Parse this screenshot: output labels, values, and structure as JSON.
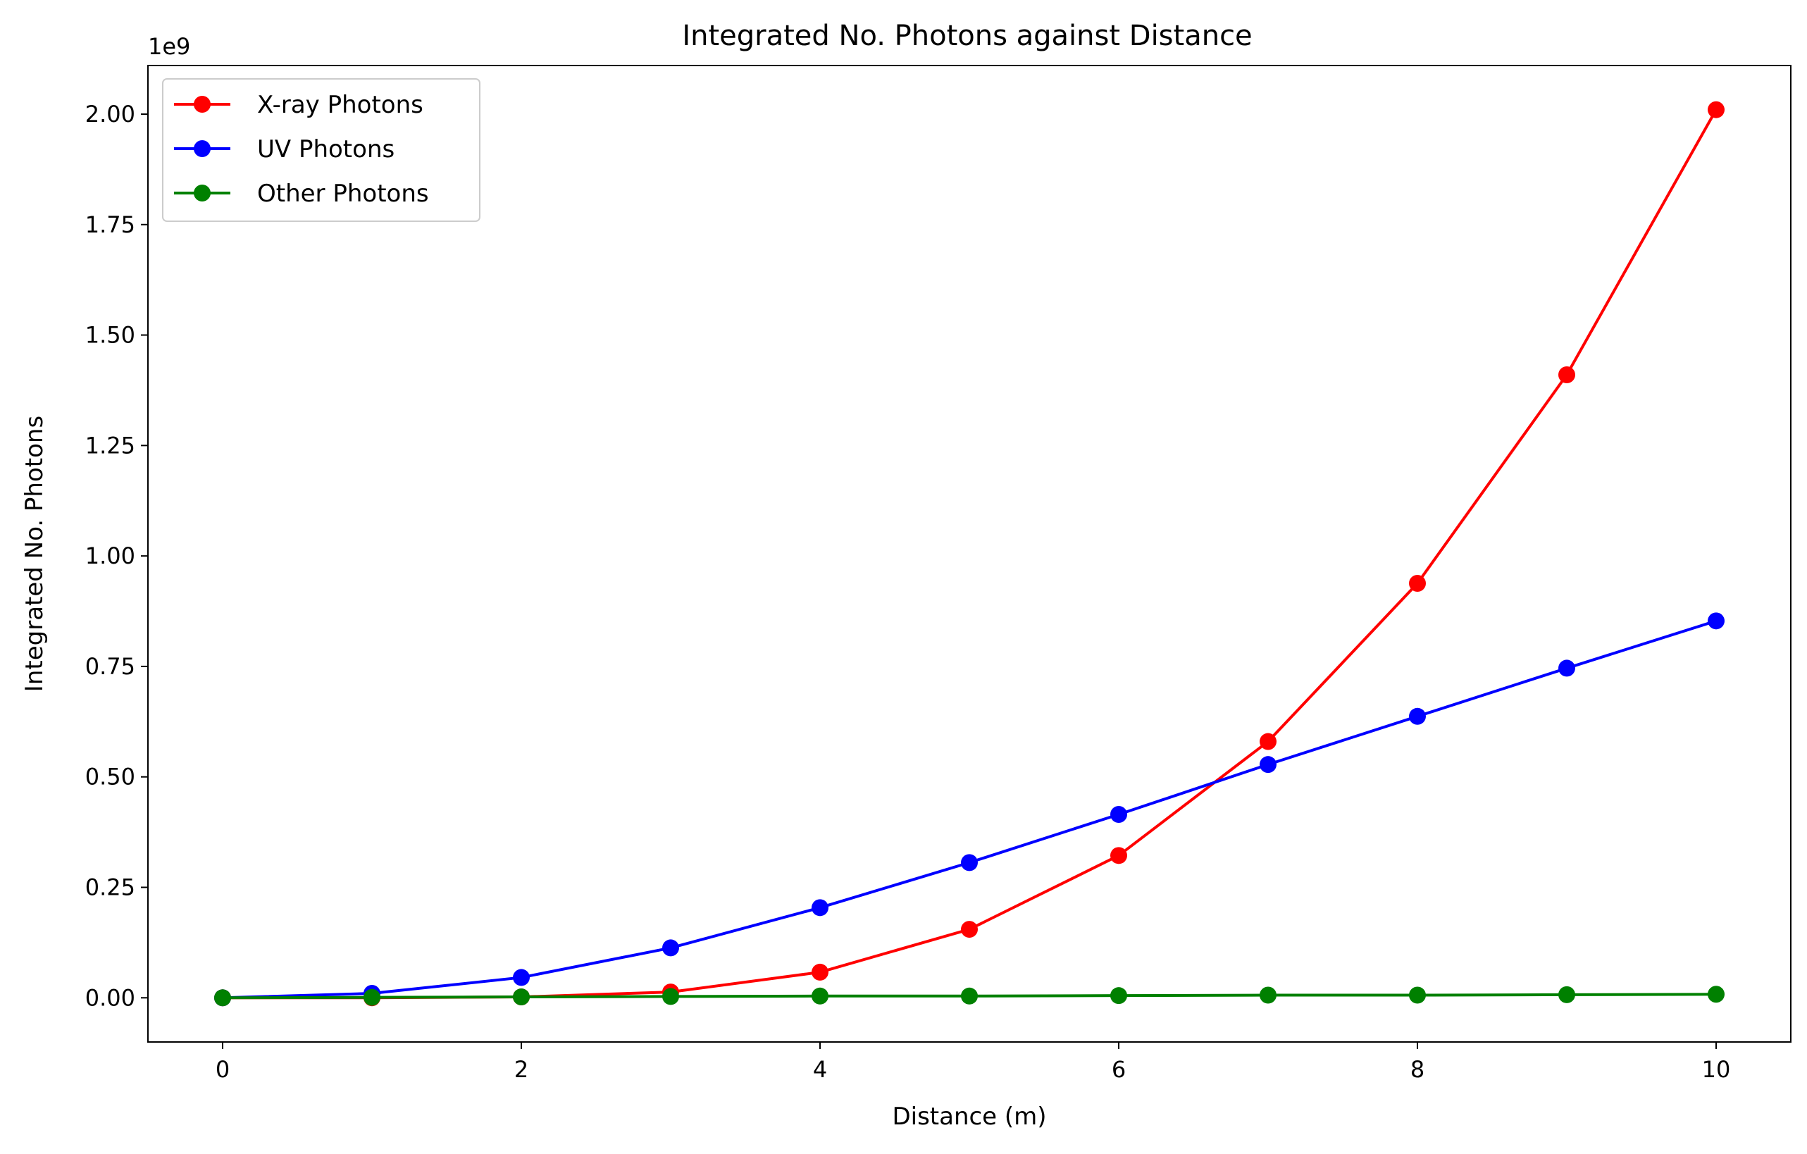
{
  "chart_data": {
    "type": "line",
    "title": "Integrated No. Photons against Distance",
    "xlabel": "Distance (m)",
    "ylabel": "Integrated No. Photons",
    "y_offset_label": "1e9",
    "xlim": [
      -0.5,
      10.5
    ],
    "ylim": [
      -0.1,
      2.11
    ],
    "x_ticks": [
      0,
      2,
      4,
      6,
      8,
      10
    ],
    "x_tick_labels": [
      "0",
      "2",
      "4",
      "6",
      "8",
      "10"
    ],
    "y_ticks": [
      0,
      0.25,
      0.5,
      0.75,
      1.0,
      1.25,
      1.5,
      1.75,
      2.0
    ],
    "y_tick_labels": [
      "0.00",
      "0.25",
      "0.50",
      "0.75",
      "1.00",
      "1.25",
      "1.50",
      "1.75",
      "2.00"
    ],
    "grid": false,
    "legend_position": "upper-left",
    "x": [
      0,
      1,
      2,
      3,
      4,
      5,
      6,
      7,
      8,
      9,
      10
    ],
    "series": [
      {
        "name": "X-ray Photons",
        "color": "#ff0000",
        "values": [
          0,
          0.0,
          0.002,
          0.013,
          0.058,
          0.155,
          0.322,
          0.58,
          0.938,
          1.41,
          2.01
        ]
      },
      {
        "name": "UV Photons",
        "color": "#0000ff",
        "values": [
          0,
          0.01,
          0.046,
          0.113,
          0.204,
          0.306,
          0.415,
          0.528,
          0.637,
          0.746,
          0.853
        ]
      },
      {
        "name": "Other Photons",
        "color": "#008000",
        "values": [
          0,
          0.001,
          0.002,
          0.003,
          0.004,
          0.004,
          0.005,
          0.006,
          0.006,
          0.007,
          0.008
        ]
      }
    ]
  }
}
